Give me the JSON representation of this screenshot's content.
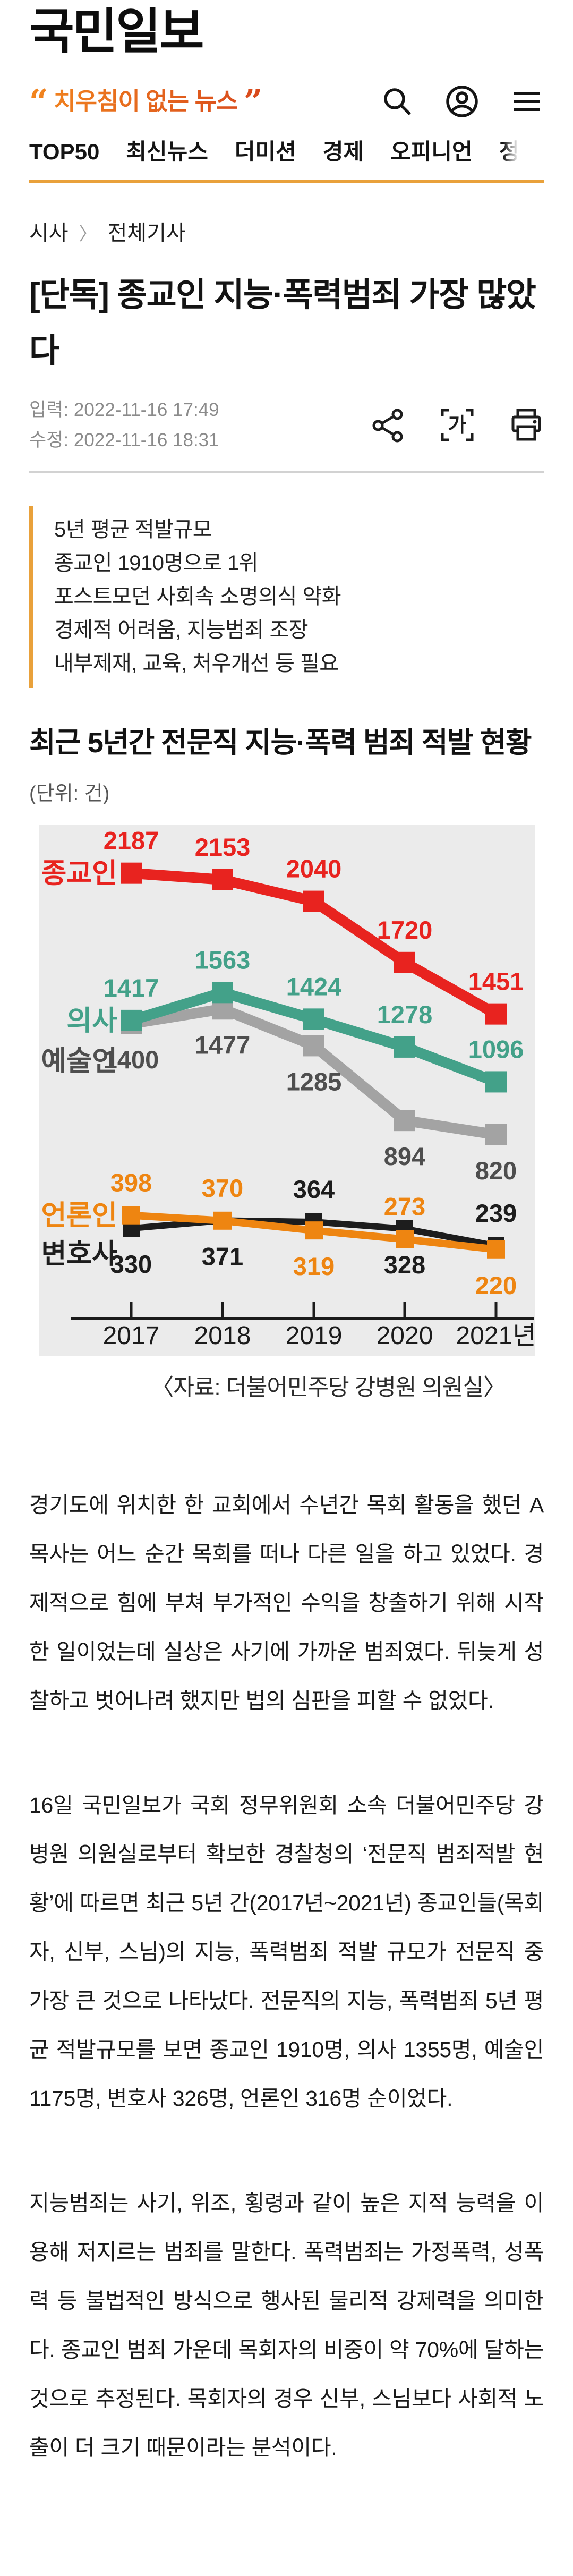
{
  "brand": {
    "logo": "국민일보",
    "slogan_open": "“",
    "slogan": " 치우침이 없는 뉴스 ",
    "slogan_close": "”",
    "slogan_color_start": "#f2861e",
    "slogan_color_end": "#d8481c",
    "accent_line_color": "#e9a13b"
  },
  "header_icons": [
    {
      "name": "search-icon"
    },
    {
      "name": "profile-icon"
    },
    {
      "name": "menu-icon"
    }
  ],
  "nav": {
    "items": [
      "TOP50",
      "최신뉴스",
      "더미션",
      "경제",
      "오피니언",
      "정"
    ]
  },
  "breadcrumb": {
    "section": "시사",
    "separator": "〉",
    "page": "전체기사"
  },
  "article": {
    "title": "[단독] 종교인 지능·폭력범죄 가장 많았다",
    "meta": [
      {
        "label": "입력",
        "value": "2022-11-16 17:49"
      },
      {
        "label": "수정",
        "value": "2022-11-16 18:31"
      }
    ],
    "actions": [
      {
        "name": "share-icon"
      },
      {
        "name": "font-size-icon",
        "glyph": "가"
      },
      {
        "name": "print-icon"
      }
    ],
    "summary_lines": [
      "5년 평균 적발규모",
      "종교인 1910명으로 1위",
      "포스트모던 사회속 소명의식 약화",
      "경제적 어려움, 지능범죄 조장",
      "내부제재, 교육, 처우개선 등 필요"
    ],
    "paragraphs": [
      "경기도에 위치한 한 교회에서 수년간 목회 활동을 했던 A목사는 어느 순간 목회를 떠나 다른 일을 하고 있었다. 경제적으로 힘에 부쳐 부가적인 수익을 창출하기 위해 시작한 일이었는데 실상은 사기에 가까운 범죄였다. 뒤늦게 성찰하고 벗어나려 했지만 법의 심판을 피할 수 없었다.",
      "16일 국민일보가 국회 정무위원회 소속 더불어민주당 강병원 의원실로부터 확보한 경찰청의 ‘전문직 범죄적발 현황’에 따르면 최근 5년 간(2017년~2021년) 종교인들(목회자, 신부, 스님)의 지능, 폭력범죄 적발 규모가 전문직 중 가장 큰 것으로 나타났다. 전문직의 지능, 폭력범죄 5년 평균 적발규모를 보면 종교인 1910명, 의사 1355명, 예술인 1175명, 변호사 326명, 언론인 316명 순이었다.",
      "지능범죄는 사기, 위조, 횡령과 같이 높은 지적 능력을 이용해 저지르는 범죄를 말한다. 폭력범죄는 가정폭력, 성폭력 등 불법적인 방식으로 행사된 물리적 강제력을 의미한다. 종교인 범죄 가운데 목회자의 비중이 약 70%에 달하는 것으로 추정된다. 목회자의 경우 신부, 스님보다 사회적 노출이 더 크기 때문이라는 분석이다."
    ]
  },
  "chart_data": {
    "type": "line",
    "title": "최근 5년간 전문직 지능·폭력 범죄 적발 현황",
    "unit_label": "(단위: 건)",
    "categories": [
      "2017",
      "2018",
      "2019",
      "2020",
      "2021년"
    ],
    "series": [
      {
        "name": "종교인",
        "color": "#e8231f",
        "values": [
          2187,
          2153,
          2040,
          1720,
          1451
        ],
        "label_side": [
          "above",
          "above",
          "above",
          "above",
          "above"
        ]
      },
      {
        "name": "의사",
        "color": "#43a189",
        "values": [
          1417,
          1563,
          1424,
          1278,
          1096
        ],
        "label_side": [
          "above",
          "above",
          "above",
          "above",
          "above"
        ]
      },
      {
        "name": "예술인",
        "color": "#a3a3a3",
        "label_color": "#4e4e4e",
        "values": [
          1400,
          1477,
          1285,
          894,
          820
        ],
        "label_side": [
          "below",
          "below",
          "below",
          "below",
          "below"
        ]
      },
      {
        "name": "언론인",
        "color": "#ee8511",
        "values": [
          398,
          370,
          319,
          273,
          220
        ],
        "label_side": [
          "above",
          "above",
          "below",
          "above",
          "below"
        ]
      },
      {
        "name": "변호사",
        "color": "#1d1d1d",
        "values": [
          330,
          371,
          364,
          328,
          239
        ],
        "label_side": [
          "below",
          "below",
          "above",
          "below",
          "above"
        ]
      }
    ],
    "source": "〈자료: 더불어민주당 강병원 의원실〉",
    "background": "#ebebeb",
    "ylim": [
      150,
      2350
    ],
    "grid": false,
    "legend_position": "inline-left"
  }
}
